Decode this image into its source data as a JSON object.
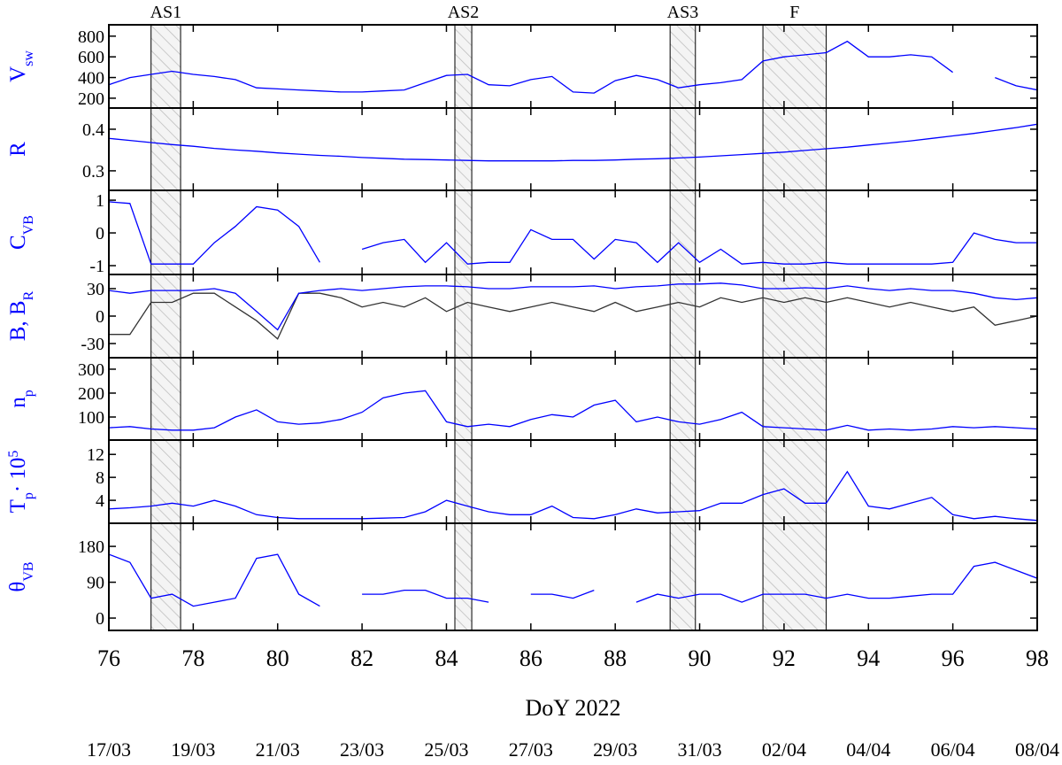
{
  "chart_data": [
    {
      "type": "line",
      "ylabel": [
        {
          "text": "V"
        },
        {
          "text": "sw",
          "baseline": "sub"
        }
      ],
      "xlim": [
        76,
        98
      ],
      "ylim": [
        105,
        910
      ],
      "yticks": [
        200,
        400,
        600,
        800
      ],
      "intervals": [
        {
          "label": "AS1",
          "start": 77.0,
          "end": 77.7
        },
        {
          "label": "AS2",
          "start": 84.2,
          "end": 84.6
        },
        {
          "label": "AS3",
          "start": 89.3,
          "end": 89.9
        },
        {
          "label": "F",
          "start": 91.5,
          "end": 93.0
        }
      ],
      "x": [
        76,
        76.5,
        77,
        77.5,
        78,
        78.5,
        79,
        79.5,
        80,
        80.5,
        81,
        81.5,
        82,
        82.5,
        83,
        83.5,
        84,
        84.5,
        85,
        85.5,
        86,
        86.5,
        87,
        87.5,
        88,
        88.5,
        89,
        89.5,
        90,
        90.5,
        91,
        91.5,
        92,
        92.5,
        93,
        93.5,
        94,
        94.5,
        95,
        95.5,
        96,
        96.5,
        97,
        97.5,
        98
      ],
      "series": [
        {
          "color": "#0000ff",
          "values": [
            330,
            400,
            430,
            460,
            430,
            410,
            380,
            300,
            290,
            280,
            270,
            260,
            260,
            270,
            280,
            350,
            420,
            430,
            330,
            320,
            380,
            410,
            260,
            250,
            370,
            420,
            380,
            300,
            330,
            350,
            380,
            560,
            600,
            620,
            640,
            750,
            600,
            600,
            620,
            600,
            450,
            null,
            400,
            320,
            280
          ]
        }
      ]
    },
    {
      "type": "line",
      "ylabel": [
        {
          "text": "R"
        }
      ],
      "xlim": [
        76,
        98
      ],
      "ylim": [
        0.253,
        0.451
      ],
      "yticks": [
        0.3,
        0.4
      ],
      "x": [
        76,
        76.5,
        77,
        77.5,
        78,
        78.5,
        79,
        79.5,
        80,
        80.5,
        81,
        81.5,
        82,
        82.5,
        83,
        83.5,
        84,
        84.5,
        85,
        85.5,
        86,
        86.5,
        87,
        87.5,
        88,
        88.5,
        89,
        89.5,
        90,
        90.5,
        91,
        91.5,
        92,
        92.5,
        93,
        93.5,
        94,
        94.5,
        95,
        95.5,
        96,
        96.5,
        97,
        97.5,
        98
      ],
      "series": [
        {
          "color": "#0000ff",
          "values": [
            0.378,
            0.373,
            0.368,
            0.363,
            0.359,
            0.354,
            0.35,
            0.347,
            0.343,
            0.34,
            0.337,
            0.335,
            0.332,
            0.33,
            0.328,
            0.327,
            0.326,
            0.325,
            0.324,
            0.324,
            0.324,
            0.324,
            0.325,
            0.325,
            0.326,
            0.328,
            0.329,
            0.331,
            0.333,
            0.336,
            0.339,
            0.342,
            0.345,
            0.349,
            0.353,
            0.357,
            0.362,
            0.367,
            0.372,
            0.378,
            0.384,
            0.39,
            0.397,
            0.404,
            0.412
          ]
        }
      ]
    },
    {
      "type": "line",
      "ylabel": [
        {
          "text": "C"
        },
        {
          "text": "VB",
          "baseline": "sub"
        }
      ],
      "xlim": [
        76,
        98
      ],
      "ylim": [
        -1.27,
        1.3
      ],
      "yticks": [
        -1,
        0,
        1
      ],
      "x": [
        76,
        76.5,
        77,
        77.5,
        78,
        78.5,
        79,
        79.5,
        80,
        80.5,
        81,
        81.5,
        82,
        82.5,
        83,
        83.5,
        84,
        84.5,
        85,
        85.5,
        86,
        86.5,
        87,
        87.5,
        88,
        88.5,
        89,
        89.5,
        90,
        90.5,
        91,
        91.5,
        92,
        92.5,
        93,
        93.5,
        94,
        94.5,
        95,
        95.5,
        96,
        96.5,
        97,
        97.5,
        98
      ],
      "series": [
        {
          "color": "#0000ff",
          "values": [
            0.95,
            0.9,
            -0.95,
            -0.95,
            -0.95,
            -0.3,
            0.2,
            0.8,
            0.7,
            0.2,
            -0.9,
            null,
            -0.5,
            -0.3,
            -0.2,
            -0.9,
            -0.3,
            -0.95,
            -0.9,
            -0.9,
            0.1,
            -0.2,
            -0.2,
            -0.8,
            -0.2,
            -0.3,
            -0.9,
            -0.3,
            -0.9,
            -0.5,
            -0.95,
            -0.9,
            -0.95,
            -0.95,
            -0.9,
            -0.95,
            -0.95,
            -0.95,
            -0.95,
            -0.95,
            -0.9,
            0.0,
            -0.2,
            -0.3,
            -0.3
          ]
        }
      ]
    },
    {
      "type": "line",
      "ylabel": [
        {
          "text": "B, B"
        },
        {
          "text": "R",
          "baseline": "sub"
        }
      ],
      "xlim": [
        76,
        98
      ],
      "ylim": [
        -45.5,
        45.5
      ],
      "yticks": [
        -30,
        0,
        30
      ],
      "x": [
        76,
        76.5,
        77,
        77.5,
        78,
        78.5,
        79,
        79.5,
        80,
        80.5,
        81,
        81.5,
        82,
        82.5,
        83,
        83.5,
        84,
        84.5,
        85,
        85.5,
        86,
        86.5,
        87,
        87.5,
        88,
        88.5,
        89,
        89.5,
        90,
        90.5,
        91,
        91.5,
        92,
        92.5,
        93,
        93.5,
        94,
        94.5,
        95,
        95.5,
        96,
        96.5,
        97,
        97.5,
        98
      ],
      "series": [
        {
          "color": "#333333",
          "values": [
            -20,
            -20,
            15,
            15,
            25,
            25,
            10,
            -5,
            -25,
            25,
            25,
            20,
            10,
            15,
            10,
            20,
            5,
            15,
            10,
            5,
            10,
            15,
            10,
            5,
            15,
            5,
            10,
            15,
            10,
            20,
            15,
            20,
            15,
            20,
            15,
            20,
            15,
            10,
            15,
            10,
            5,
            10,
            -10,
            -5,
            0
          ]
        },
        {
          "color": "#0000ff",
          "values": [
            28,
            25,
            28,
            28,
            28,
            30,
            25,
            5,
            -15,
            25,
            28,
            30,
            28,
            30,
            32,
            33,
            33,
            32,
            30,
            30,
            32,
            32,
            32,
            33,
            30,
            32,
            33,
            35,
            35,
            36,
            34,
            30,
            30,
            31,
            30,
            33,
            30,
            28,
            30,
            28,
            28,
            25,
            20,
            18,
            20
          ]
        }
      ]
    },
    {
      "type": "line",
      "ylabel": [
        {
          "text": "n"
        },
        {
          "text": "p",
          "baseline": "sub"
        }
      ],
      "xlim": [
        76,
        98
      ],
      "ylim": [
        3.7,
        348
      ],
      "yticks": [
        100,
        200,
        300
      ],
      "x": [
        76,
        76.5,
        77,
        77.5,
        78,
        78.5,
        79,
        79.5,
        80,
        80.5,
        81,
        81.5,
        82,
        82.5,
        83,
        83.5,
        84,
        84.5,
        85,
        85.5,
        86,
        86.5,
        87,
        87.5,
        88,
        88.5,
        89,
        89.5,
        90,
        90.5,
        91,
        91.5,
        92,
        92.5,
        93,
        93.5,
        94,
        94.5,
        95,
        95.5,
        96,
        96.5,
        97,
        97.5,
        98
      ],
      "series": [
        {
          "color": "#0000ff",
          "values": [
            55,
            60,
            50,
            45,
            45,
            55,
            100,
            130,
            80,
            70,
            75,
            90,
            120,
            180,
            200,
            210,
            80,
            60,
            70,
            60,
            90,
            110,
            100,
            150,
            170,
            80,
            100,
            80,
            70,
            90,
            120,
            60,
            55,
            50,
            45,
            65,
            45,
            50,
            45,
            50,
            60,
            55,
            60,
            55,
            50
          ]
        }
      ]
    },
    {
      "type": "line",
      "ylabel": [
        {
          "text": "T"
        },
        {
          "text": "p",
          "baseline": "sub"
        },
        {
          "text": "· 10"
        },
        {
          "text": "5",
          "baseline": "super"
        }
      ],
      "xlim": [
        76,
        98
      ],
      "ylim": [
        0,
        14.5
      ],
      "yticks": [
        4,
        8,
        12
      ],
      "x": [
        76,
        76.5,
        77,
        77.5,
        78,
        78.5,
        79,
        79.5,
        80,
        80.5,
        81,
        81.5,
        82,
        82.5,
        83,
        83.5,
        84,
        84.5,
        85,
        85.5,
        86,
        86.5,
        87,
        87.5,
        88,
        88.5,
        89,
        89.5,
        90,
        90.5,
        91,
        91.5,
        92,
        92.5,
        93,
        93.5,
        94,
        94.5,
        95,
        95.5,
        96,
        96.5,
        97,
        97.5,
        98
      ],
      "series": [
        {
          "color": "#0000ff",
          "values": [
            2.5,
            2.7,
            3,
            3.5,
            3,
            4,
            3,
            1.5,
            1,
            0.8,
            0.8,
            0.8,
            0.8,
            0.9,
            1,
            2,
            4,
            3,
            2,
            1.5,
            1.5,
            3,
            1,
            0.8,
            1.5,
            2.5,
            1.8,
            2,
            2.2,
            3.5,
            3.5,
            5,
            6,
            3.5,
            3.5,
            9,
            3,
            2.5,
            3.5,
            4.5,
            1.5,
            0.8,
            1.2,
            0.8,
            0.5
          ]
        }
      ]
    },
    {
      "type": "line",
      "ylabel": [
        {
          "text": "θ"
        },
        {
          "text": "VB",
          "baseline": "sub"
        }
      ],
      "xlim": [
        76,
        98
      ],
      "ylim": [
        -31,
        238
      ],
      "yticks": [
        0,
        90,
        180
      ],
      "xticks": [
        76,
        78,
        80,
        82,
        84,
        86,
        88,
        90,
        92,
        94,
        96,
        98
      ],
      "xlabel": "DoY 2022",
      "date_labels": [
        "17/03",
        "19/03",
        "21/03",
        "23/03",
        "25/03",
        "27/03",
        "29/03",
        "31/03",
        "02/04",
        "04/04",
        "06/04",
        "08/04"
      ],
      "x": [
        76,
        76.5,
        77,
        77.5,
        78,
        78.5,
        79,
        79.5,
        80,
        80.5,
        81,
        81.5,
        82,
        82.5,
        83,
        83.5,
        84,
        84.5,
        85,
        85.5,
        86,
        86.5,
        87,
        87.5,
        88,
        88.5,
        89,
        89.5,
        90,
        90.5,
        91,
        91.5,
        92,
        92.5,
        93,
        93.5,
        94,
        94.5,
        95,
        95.5,
        96,
        96.5,
        97,
        97.5,
        98
      ],
      "series": [
        {
          "color": "#0000ff",
          "values": [
            160,
            140,
            50,
            60,
            30,
            40,
            50,
            150,
            160,
            60,
            30,
            null,
            60,
            60,
            70,
            70,
            50,
            50,
            40,
            null,
            60,
            60,
            50,
            70,
            null,
            40,
            60,
            50,
            60,
            60,
            40,
            60,
            60,
            60,
            50,
            60,
            50,
            50,
            55,
            60,
            60,
            130,
            140,
            120,
            100
          ]
        }
      ]
    }
  ]
}
